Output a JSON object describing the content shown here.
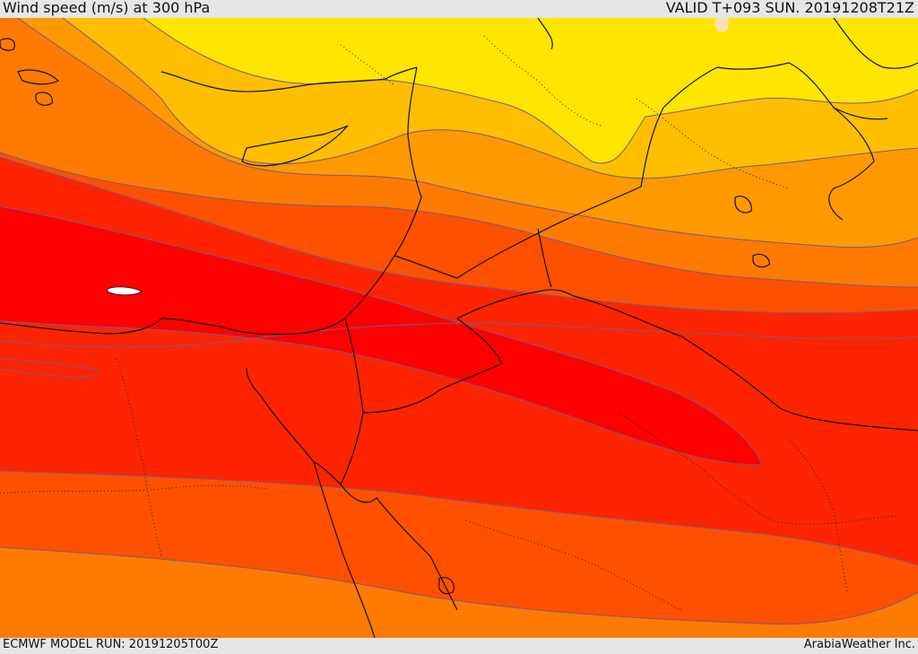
{
  "header": {
    "title": "Wind speed (m/s) at 300 hPa",
    "valid": "VALID T+093 SUN. 20191208T21Z"
  },
  "footer": {
    "model_run": "ECMWF MODEL RUN: 20191205T00Z",
    "credit": "ArabiaWeather Inc."
  },
  "map": {
    "variable": "wind speed",
    "units": "m/s",
    "level": "300 hPa",
    "colors": {
      "yellow": "#ffe600",
      "light_orange": "#ffbf00",
      "orange": "#ff9900",
      "dark_orange": "#ff7a00",
      "red_orange": "#ff5000",
      "red": "#ff2000",
      "core": "#ff0000",
      "contour": "#7a5a8a",
      "border": "#111111"
    }
  }
}
